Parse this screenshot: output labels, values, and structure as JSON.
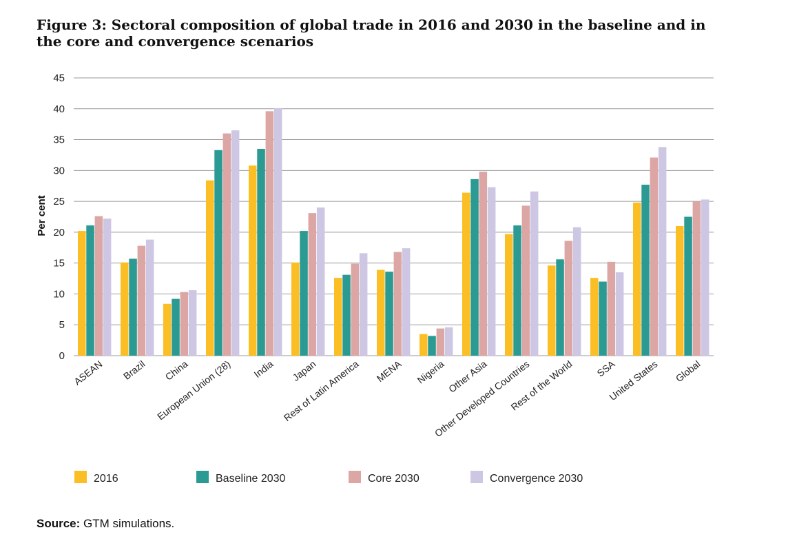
{
  "figure_title": "Figure 3: Sectoral composition of global trade in 2016 and 2030 in the baseline and in the core and convergence scenarios",
  "source": {
    "label": "Source:",
    "text": "GTM simulations."
  },
  "colors": {
    "2016": "#fbbf25",
    "Baseline 2030": "#2a9a93",
    "Core 2030": "#dca6a5",
    "Convergence 2030": "#cdc7e4",
    "gridline": "#9a9a9a"
  },
  "chart_data": {
    "type": "bar",
    "title": "Figure 3: Sectoral composition of global trade in 2016 and 2030 in the baseline and in the core and convergence scenarios",
    "xlabel": "",
    "ylabel": "Per cent",
    "ylim": [
      0,
      45
    ],
    "yticks": [
      0,
      5,
      10,
      15,
      20,
      25,
      30,
      35,
      40,
      45
    ],
    "grid": true,
    "legend_position": "bottom",
    "categories": [
      "ASEAN",
      "Brazil",
      "China",
      "European Union (28)",
      "India",
      "Japan",
      "Rest of Latin America",
      "MENA",
      "Nigeria",
      "Other Asia",
      "Other Developed Countries",
      "Rest of the World",
      "SSA",
      "United States",
      "Global"
    ],
    "series": [
      {
        "name": "2016",
        "values": [
          20.2,
          15.1,
          8.4,
          28.4,
          30.8,
          15.1,
          12.6,
          13.9,
          3.5,
          26.4,
          19.7,
          14.6,
          12.6,
          24.8,
          21.0
        ]
      },
      {
        "name": "Baseline 2030",
        "values": [
          21.1,
          15.7,
          9.2,
          33.3,
          33.5,
          20.2,
          13.1,
          13.6,
          3.2,
          28.6,
          21.1,
          15.6,
          12.0,
          27.7,
          22.5
        ]
      },
      {
        "name": "Core 2030",
        "values": [
          22.6,
          17.8,
          10.3,
          36.0,
          39.6,
          23.1,
          14.9,
          16.8,
          4.4,
          29.8,
          24.3,
          18.6,
          15.2,
          32.1,
          25.0
        ]
      },
      {
        "name": "Convergence 2030",
        "values": [
          22.2,
          18.8,
          10.6,
          36.5,
          40.1,
          24.0,
          16.6,
          17.4,
          4.6,
          27.3,
          26.6,
          20.8,
          13.5,
          33.8,
          25.3
        ]
      }
    ]
  }
}
